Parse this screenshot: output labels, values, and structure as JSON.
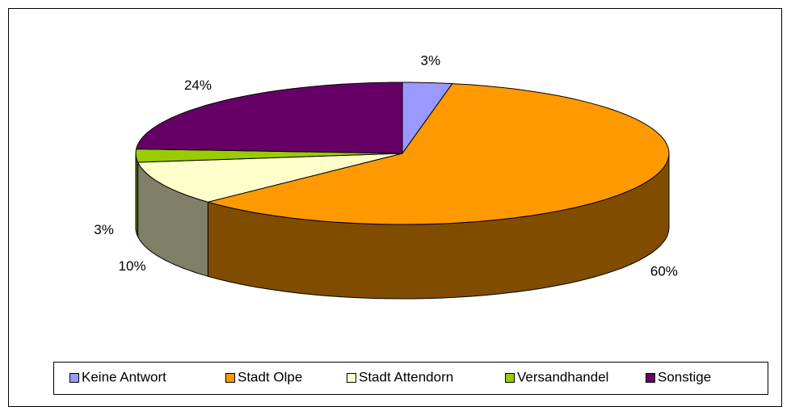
{
  "chart_data": {
    "type": "pie3d",
    "categories": [
      "Keine Antwort",
      "Stadt Olpe",
      "Stadt Attendorn",
      "Versandhandel",
      "Sonstige"
    ],
    "values": [
      3,
      60,
      10,
      3,
      24
    ],
    "value_labels": [
      "3%",
      "60%",
      "10%",
      "3%",
      "24%"
    ],
    "colors": [
      "#9999ff",
      "#ff9900",
      "#ffffcc",
      "#99cc00",
      "#660066"
    ],
    "legend": "bottom"
  }
}
